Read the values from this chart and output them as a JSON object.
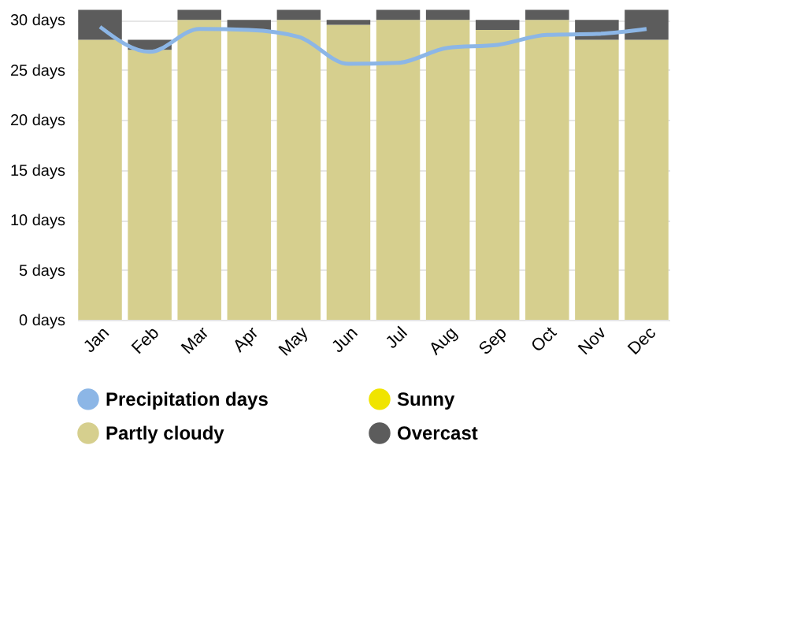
{
  "chart_data": {
    "type": "bar",
    "stacked": true,
    "categories": [
      "Jan",
      "Feb",
      "Mar",
      "Apr",
      "May",
      "Jun",
      "Jul",
      "Aug",
      "Sep",
      "Oct",
      "Nov",
      "Dec"
    ],
    "series": [
      {
        "name": "Precipitation days",
        "type": "line",
        "color": "#8cb6e6",
        "values": [
          29.3,
          26.8,
          29.1,
          29.0,
          28.3,
          25.6,
          25.7,
          27.2,
          27.5,
          28.5,
          28.6,
          29.1
        ]
      },
      {
        "name": "Partly cloudy",
        "color": "#d6cf8e",
        "values": [
          28,
          27,
          30,
          29,
          30,
          29.5,
          30,
          30,
          29,
          30,
          28,
          28
        ]
      },
      {
        "name": "Sunny",
        "color": "#f0e400",
        "values": [
          0,
          0,
          0,
          0,
          0,
          0,
          0,
          0,
          0,
          0,
          0,
          0
        ]
      },
      {
        "name": "Overcast",
        "color": "#5c5c5c",
        "values": [
          3,
          1,
          1,
          1,
          1,
          0.5,
          1,
          1,
          1,
          1,
          2,
          3
        ]
      }
    ],
    "ylim": [
      0,
      31.2
    ],
    "yticks": [
      {
        "value": 0,
        "label": "0 days"
      },
      {
        "value": 5,
        "label": "5 days"
      },
      {
        "value": 10,
        "label": "10 days"
      },
      {
        "value": 15,
        "label": "15 days"
      },
      {
        "value": 20,
        "label": "20 days"
      },
      {
        "value": 25,
        "label": "25 days"
      },
      {
        "value": 30,
        "label": "30 days"
      }
    ],
    "grid": "y",
    "legend": "bottom"
  }
}
